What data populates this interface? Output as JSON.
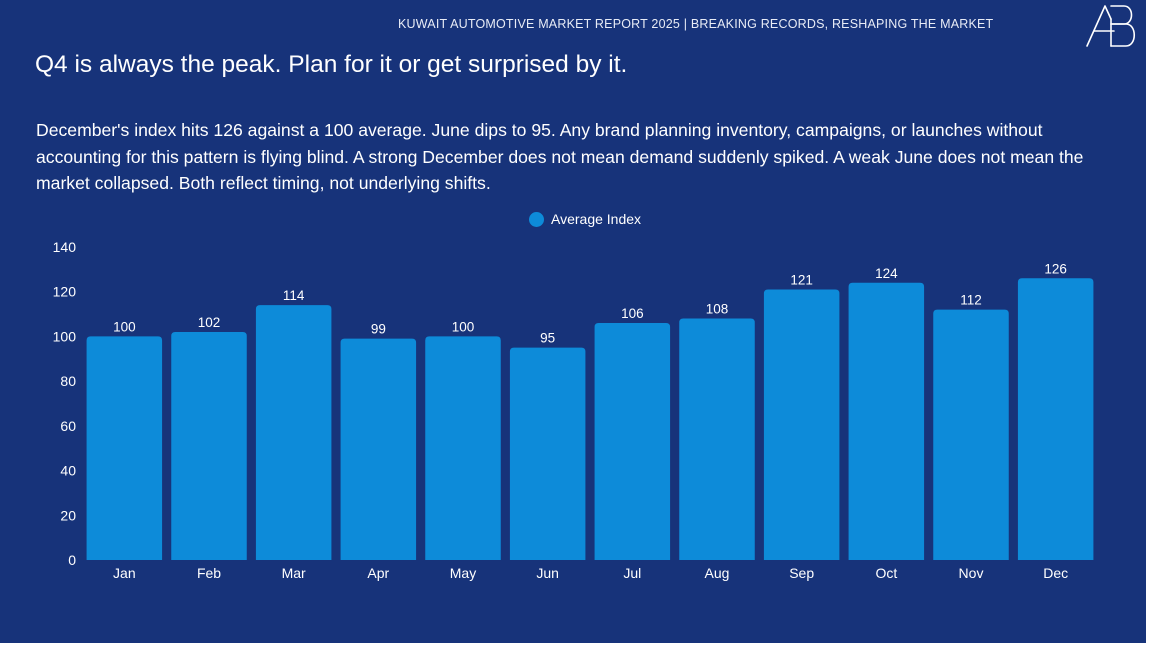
{
  "header": {
    "report_title": "KUWAIT AUTOMOTIVE MARKET REPORT 2025 | BREAKING RECORDS, RESHAPING THE MARKET",
    "logo_icon": "ab-monogram-icon",
    "logo_text": "AB"
  },
  "headline": "Q4 is always the peak. Plan for it or get surprised by it.",
  "body_text": "December's index hits 126 against a 100 average. June dips to 95. Any brand planning inventory, campaigns, or launches without accounting for this pattern is flying blind. A strong December does not mean demand suddenly spiked. A weak June does not mean the market collapsed. Both reflect timing, not underlying shifts.",
  "colors": {
    "background": "#17337a",
    "bar": "#0d8bd9",
    "text": "#ffffff"
  },
  "chart_data": {
    "type": "bar",
    "title": "",
    "xlabel": "",
    "ylabel": "",
    "categories": [
      "Jan",
      "Feb",
      "Mar",
      "Apr",
      "May",
      "Jun",
      "Jul",
      "Aug",
      "Sep",
      "Oct",
      "Nov",
      "Dec"
    ],
    "series": [
      {
        "name": "Average Index",
        "values": [
          100,
          102,
          114,
          99,
          100,
          95,
          106,
          108,
          121,
          124,
          112,
          126
        ]
      }
    ],
    "ylim": [
      0,
      140
    ],
    "yticks": [
      0,
      20,
      40,
      60,
      80,
      100,
      120,
      140
    ],
    "grid": false,
    "legend_position": "top-center",
    "data_labels": true
  }
}
